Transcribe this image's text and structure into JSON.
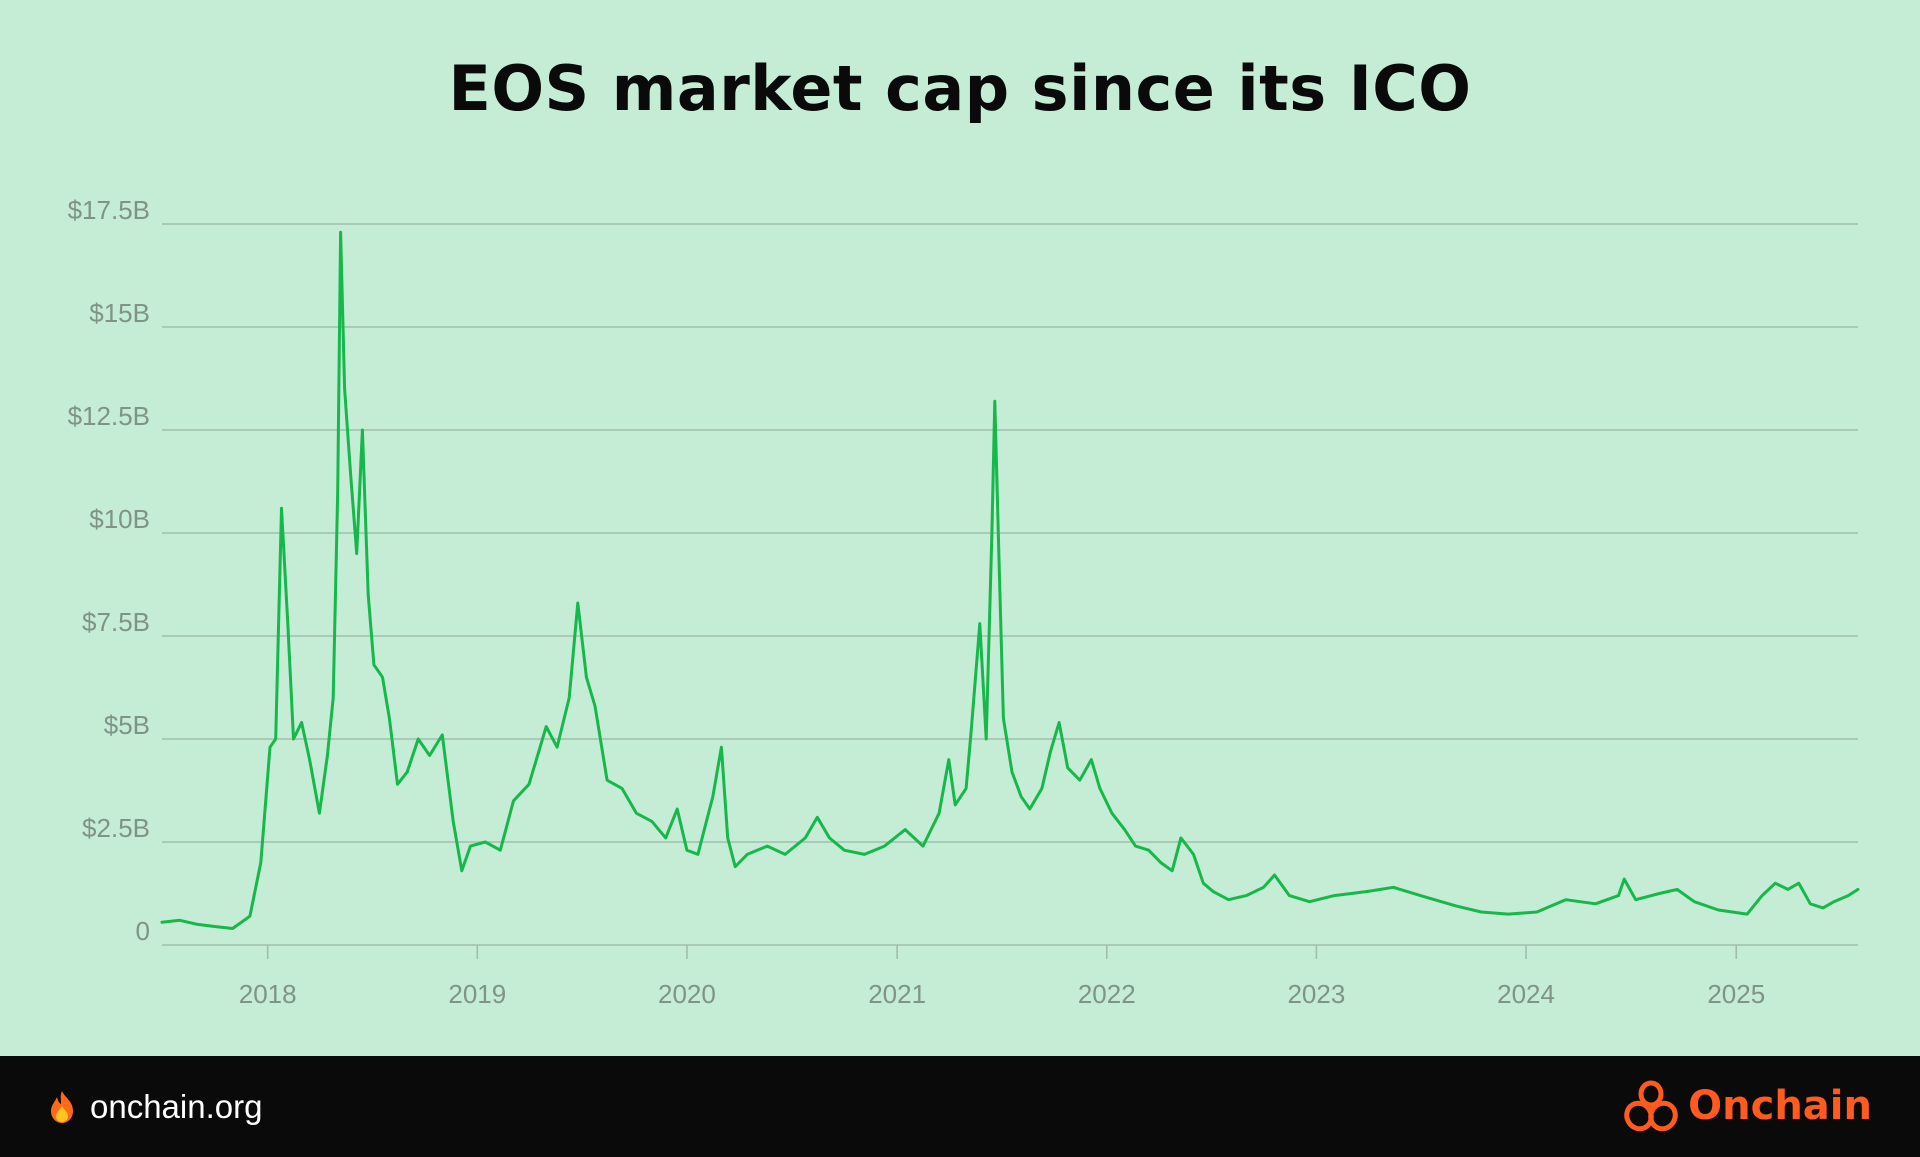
{
  "chart_data": {
    "type": "line",
    "title": "EOS market cap since its ICO",
    "xlabel": "",
    "ylabel": "",
    "xlim": [
      "2017-07-01",
      "2025-08-01"
    ],
    "ylim": [
      0,
      17.5
    ],
    "y_ticks": [
      {
        "value": 0,
        "label": "0"
      },
      {
        "value": 2.5,
        "label": "$2.5B"
      },
      {
        "value": 5,
        "label": "$5B"
      },
      {
        "value": 7.5,
        "label": "$7.5B"
      },
      {
        "value": 10,
        "label": "$10B"
      },
      {
        "value": 12.5,
        "label": "$12.5B"
      },
      {
        "value": 15,
        "label": "$15B"
      },
      {
        "value": 17.5,
        "label": "$17.5B"
      }
    ],
    "x_ticks": [
      {
        "value": "2018-01-01",
        "label": "2018"
      },
      {
        "value": "2019-01-01",
        "label": "2019"
      },
      {
        "value": "2020-01-01",
        "label": "2020"
      },
      {
        "value": "2021-01-01",
        "label": "2021"
      },
      {
        "value": "2022-01-01",
        "label": "2022"
      },
      {
        "value": "2023-01-01",
        "label": "2023"
      },
      {
        "value": "2024-01-01",
        "label": "2024"
      },
      {
        "value": "2025-01-01",
        "label": "2025"
      }
    ],
    "grid": true,
    "series": [
      {
        "color": "#16b84b",
        "points": [
          [
            "2017-07-01",
            0.55
          ],
          [
            "2017-08-01",
            0.6
          ],
          [
            "2017-09-01",
            0.5
          ],
          [
            "2017-10-01",
            0.45
          ],
          [
            "2017-11-01",
            0.4
          ],
          [
            "2017-12-01",
            0.7
          ],
          [
            "2017-12-20",
            2.0
          ],
          [
            "2018-01-05",
            4.8
          ],
          [
            "2018-01-15",
            5.0
          ],
          [
            "2018-01-25",
            10.6
          ],
          [
            "2018-02-05",
            7.8
          ],
          [
            "2018-02-15",
            5.0
          ],
          [
            "2018-03-01",
            5.4
          ],
          [
            "2018-03-15",
            4.5
          ],
          [
            "2018-04-01",
            3.2
          ],
          [
            "2018-04-15",
            4.6
          ],
          [
            "2018-04-25",
            6.0
          ],
          [
            "2018-05-03",
            11.0
          ],
          [
            "2018-05-08",
            17.3
          ],
          [
            "2018-05-15",
            13.5
          ],
          [
            "2018-05-25",
            11.5
          ],
          [
            "2018-06-05",
            9.5
          ],
          [
            "2018-06-15",
            12.5
          ],
          [
            "2018-06-25",
            8.5
          ],
          [
            "2018-07-05",
            6.8
          ],
          [
            "2018-07-20",
            6.5
          ],
          [
            "2018-08-01",
            5.5
          ],
          [
            "2018-08-15",
            3.9
          ],
          [
            "2018-09-01",
            4.2
          ],
          [
            "2018-09-20",
            5.0
          ],
          [
            "2018-10-10",
            4.6
          ],
          [
            "2018-11-01",
            5.1
          ],
          [
            "2018-11-20",
            3.0
          ],
          [
            "2018-12-05",
            1.8
          ],
          [
            "2018-12-20",
            2.4
          ],
          [
            "2019-01-15",
            2.5
          ],
          [
            "2019-02-10",
            2.3
          ],
          [
            "2019-03-05",
            3.5
          ],
          [
            "2019-04-01",
            3.9
          ],
          [
            "2019-05-01",
            5.3
          ],
          [
            "2019-05-20",
            4.8
          ],
          [
            "2019-06-10",
            6.0
          ],
          [
            "2019-06-25",
            8.3
          ],
          [
            "2019-07-10",
            6.5
          ],
          [
            "2019-07-25",
            5.8
          ],
          [
            "2019-08-15",
            4.0
          ],
          [
            "2019-09-10",
            3.8
          ],
          [
            "2019-10-05",
            3.2
          ],
          [
            "2019-11-01",
            3.0
          ],
          [
            "2019-11-25",
            2.6
          ],
          [
            "2019-12-15",
            3.3
          ],
          [
            "2020-01-01",
            2.3
          ],
          [
            "2020-01-20",
            2.2
          ],
          [
            "2020-02-15",
            3.6
          ],
          [
            "2020-03-01",
            4.8
          ],
          [
            "2020-03-12",
            2.6
          ],
          [
            "2020-03-25",
            1.9
          ],
          [
            "2020-04-15",
            2.2
          ],
          [
            "2020-05-20",
            2.4
          ],
          [
            "2020-06-20",
            2.2
          ],
          [
            "2020-07-25",
            2.6
          ],
          [
            "2020-08-15",
            3.1
          ],
          [
            "2020-09-05",
            2.6
          ],
          [
            "2020-10-01",
            2.3
          ],
          [
            "2020-11-05",
            2.2
          ],
          [
            "2020-12-10",
            2.4
          ],
          [
            "2021-01-15",
            2.8
          ],
          [
            "2021-02-15",
            2.4
          ],
          [
            "2021-03-15",
            3.2
          ],
          [
            "2021-04-01",
            4.5
          ],
          [
            "2021-04-12",
            3.4
          ],
          [
            "2021-05-01",
            3.8
          ],
          [
            "2021-05-10",
            5.2
          ],
          [
            "2021-05-25",
            7.8
          ],
          [
            "2021-06-05",
            5.0
          ],
          [
            "2021-06-15",
            10.0
          ],
          [
            "2021-06-20",
            13.2
          ],
          [
            "2021-06-28",
            9.0
          ],
          [
            "2021-07-05",
            5.5
          ],
          [
            "2021-07-20",
            4.2
          ],
          [
            "2021-08-05",
            3.6
          ],
          [
            "2021-08-20",
            3.3
          ],
          [
            "2021-09-10",
            3.8
          ],
          [
            "2021-09-25",
            4.7
          ],
          [
            "2021-10-10",
            5.4
          ],
          [
            "2021-10-25",
            4.3
          ],
          [
            "2021-11-15",
            4.0
          ],
          [
            "2021-12-05",
            4.5
          ],
          [
            "2021-12-20",
            3.8
          ],
          [
            "2022-01-10",
            3.2
          ],
          [
            "2022-02-01",
            2.8
          ],
          [
            "2022-02-20",
            2.4
          ],
          [
            "2022-03-15",
            2.3
          ],
          [
            "2022-04-05",
            2.0
          ],
          [
            "2022-04-25",
            1.8
          ],
          [
            "2022-05-10",
            2.6
          ],
          [
            "2022-06-01",
            2.2
          ],
          [
            "2022-06-18",
            1.5
          ],
          [
            "2022-07-05",
            1.3
          ],
          [
            "2022-08-01",
            1.1
          ],
          [
            "2022-09-01",
            1.2
          ],
          [
            "2022-10-01",
            1.4
          ],
          [
            "2022-10-20",
            1.7
          ],
          [
            "2022-11-15",
            1.2
          ],
          [
            "2022-12-20",
            1.05
          ],
          [
            "2023-02-01",
            1.2
          ],
          [
            "2023-04-01",
            1.3
          ],
          [
            "2023-05-15",
            1.4
          ],
          [
            "2023-07-01",
            1.2
          ],
          [
            "2023-09-01",
            0.95
          ],
          [
            "2023-10-15",
            0.8
          ],
          [
            "2023-12-01",
            0.75
          ],
          [
            "2024-01-20",
            0.8
          ],
          [
            "2024-03-10",
            1.1
          ],
          [
            "2024-05-01",
            1.0
          ],
          [
            "2024-06-10",
            1.2
          ],
          [
            "2024-06-20",
            1.6
          ],
          [
            "2024-07-10",
            1.1
          ],
          [
            "2024-08-20",
            1.25
          ],
          [
            "2024-09-20",
            1.35
          ],
          [
            "2024-10-20",
            1.05
          ],
          [
            "2024-12-01",
            0.85
          ],
          [
            "2025-01-20",
            0.75
          ],
          [
            "2025-02-15",
            1.2
          ],
          [
            "2025-03-10",
            1.5
          ],
          [
            "2025-04-01",
            1.35
          ],
          [
            "2025-04-20",
            1.5
          ],
          [
            "2025-05-10",
            1.0
          ],
          [
            "2025-06-01",
            0.9
          ],
          [
            "2025-06-20",
            1.05
          ],
          [
            "2025-07-15",
            1.2
          ],
          [
            "2025-08-01",
            1.35
          ]
        ]
      }
    ]
  },
  "footer": {
    "site_label": "onchain.org",
    "site_icon": "flame-icon",
    "brand_name": "Onchain",
    "brand_icon": "onchain-logo-icon",
    "brand_color": "#ff5a1f",
    "background": "#0a0a0a"
  }
}
